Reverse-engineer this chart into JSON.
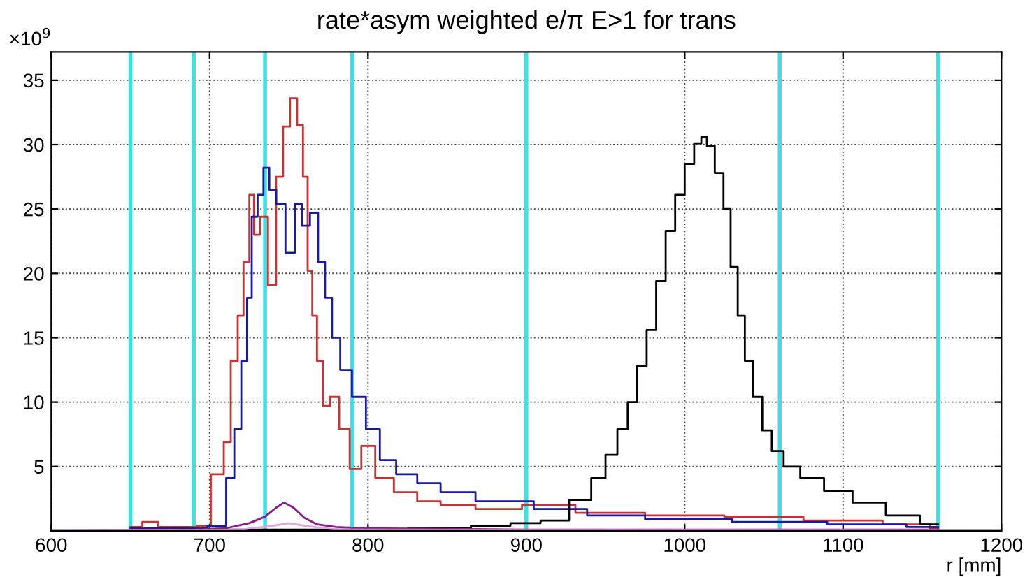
{
  "chart_data": {
    "type": "step",
    "title": "rate*asym weighted e/π E>1 for trans",
    "xlabel": "r [mm]",
    "annotations": [
      "×10$^{9}$"
    ],
    "xlim": [
      600,
      1200
    ],
    "xticks": [
      600,
      700,
      800,
      900,
      1000,
      1100,
      1200
    ],
    "ylim": [
      0,
      37.2
    ],
    "yticks": [
      5,
      10,
      15,
      20,
      25,
      30,
      35
    ],
    "grid": true,
    "line_style": "solid",
    "series": [
      {
        "color": "#c83232",
        "x": [
          650,
          665,
          670,
          690,
          694,
          707.5,
          710.4,
          716.3,
          719.2,
          723.6,
          726.6,
          729.5,
          733.9,
          739.8,
          744.2,
          748.6,
          753,
          757.5,
          760.4,
          763.4,
          766.3,
          769.3,
          773.7,
          778.1,
          785.5,
          791.4,
          800.2,
          809,
          823.7,
          838.5,
          853.2,
          882.6,
          912,
          950,
          1000,
          1050,
          1100,
          1150,
          1160
        ],
        "values": [
          0.3,
          0.7,
          0.3,
          0.3,
          0.4,
          4.4,
          6.9,
          13.2,
          16.7,
          20.9,
          26.1,
          23.0,
          24.4,
          19.1,
          27.5,
          31.4,
          33.6,
          31.5,
          27.5,
          20.2,
          16.7,
          13.2,
          9.7,
          10.4,
          7.9,
          4.8,
          6.6,
          4.1,
          3.0,
          2.3,
          2.0,
          1.7,
          2.0,
          1.4,
          1.2,
          1.1,
          0.8,
          0.5,
          0.2
        ]
      },
      {
        "color": "#1a1aa0",
        "x": [
          650,
          690,
          707.5,
          713.4,
          717.8,
          722.2,
          725.1,
          728.1,
          732.5,
          735.5,
          739.9,
          744.2,
          751.6,
          756,
          760.4,
          766.3,
          770.7,
          775.1,
          779.5,
          785.5,
          794.3,
          803.1,
          811.9,
          823.7,
          838.5,
          853.2,
          882.6,
          926.8,
          950,
          1000,
          1060,
          1120,
          1160
        ],
        "values": [
          0.2,
          0.2,
          0.4,
          4.1,
          7.9,
          13.2,
          18.1,
          24.4,
          26.1,
          28.2,
          26.5,
          25.4,
          21.6,
          25.4,
          23.7,
          24.7,
          20.9,
          18.1,
          15.0,
          12.5,
          10.4,
          7.9,
          5.5,
          4.4,
          3.7,
          3.0,
          2.3,
          1.7,
          1.2,
          0.9,
          0.7,
          0.5,
          0.3
        ]
      },
      {
        "color": "#000000",
        "x": [
          650,
          800,
          850,
          880,
          900,
          918,
          936,
          946,
          954,
          961,
          967,
          973,
          979,
          985,
          991,
          997,
          1003,
          1009,
          1012,
          1016,
          1022,
          1027,
          1031,
          1036,
          1040,
          1046,
          1052,
          1058,
          1067,
          1079,
          1097,
          1115,
          1139,
          1158,
          1160
        ],
        "values": [
          0.1,
          0.1,
          0.2,
          0.4,
          0.6,
          0.8,
          2.4,
          4.1,
          5.9,
          7.9,
          10.0,
          12.8,
          15.6,
          19.4,
          23.3,
          26.1,
          28.5,
          30.1,
          30.6,
          29.9,
          27.8,
          25.0,
          20.5,
          16.7,
          13.2,
          10.4,
          7.8,
          6.2,
          5.0,
          4.1,
          3.1,
          2.2,
          1.2,
          0.5,
          0.5
        ]
      },
      {
        "type": "line",
        "color": "#8b1a8b",
        "x": [
          650,
          690,
          710,
          725,
          735,
          742,
          747,
          753,
          760,
          768,
          780,
          800,
          900,
          1160
        ],
        "values": [
          0.1,
          0.1,
          0.2,
          0.6,
          1.1,
          1.8,
          2.2,
          1.8,
          1.0,
          0.5,
          0.3,
          0.2,
          0.1,
          0.1
        ]
      },
      {
        "type": "line",
        "color": "#e6a0e6",
        "x": [
          600,
          720,
          740,
          750,
          760,
          780,
          1200
        ],
        "values": [
          0.0,
          0.1,
          0.4,
          0.6,
          0.4,
          0.1,
          0.0
        ]
      }
    ],
    "ref_lines": [
      {
        "axis": "x",
        "value": 650,
        "color": "#40e0e0"
      },
      {
        "axis": "x",
        "value": 690,
        "color": "#40e0e0"
      },
      {
        "axis": "x",
        "value": 735,
        "color": "#40e0e0"
      },
      {
        "axis": "x",
        "value": 790,
        "color": "#40e0e0"
      },
      {
        "axis": "x",
        "value": 900,
        "color": "#40e0e0"
      },
      {
        "axis": "x",
        "value": 1060,
        "color": "#40e0e0"
      },
      {
        "axis": "x",
        "value": 1160,
        "color": "#40e0e0"
      }
    ]
  }
}
